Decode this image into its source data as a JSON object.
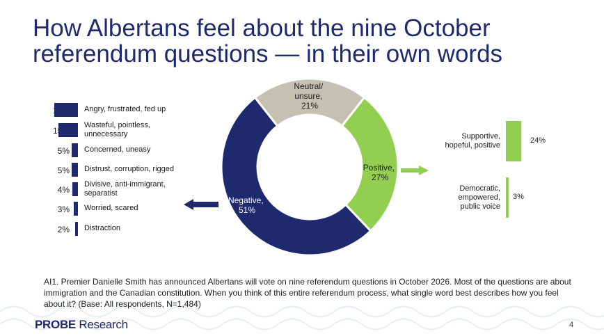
{
  "title_line1": "How Albertans feel about the nine October",
  "title_line2": "referendum questions — in their own words",
  "colors": {
    "navy": "#1f2a6e",
    "green": "#92cf50",
    "gray": "#c4c0b2"
  },
  "chart_data": [
    {
      "type": "pie",
      "subtype": "donut",
      "categories": [
        "Negative",
        "Positive",
        "Neutral/ unsure"
      ],
      "values": [
        51,
        27,
        21
      ],
      "label_text": [
        "Negative,",
        "Positive,",
        "Neutral/",
        "unsure,"
      ],
      "pct_text": [
        "51%",
        "27%",
        "21%"
      ]
    },
    {
      "type": "bar",
      "orientation": "horizontal",
      "group": "Negative",
      "categories": [
        "Angry, frustrated, fed up",
        "Wasteful, pointless, unnecessary",
        "Concerned, uneasy",
        "Distrust, corruption, rigged",
        "Divisive, anti-immigrant, separatist",
        "Worried, scared",
        "Distraction"
      ],
      "label_lines": [
        [
          "Angry, frustrated, fed up"
        ],
        [
          "Wasteful, pointless,",
          "unnecessary"
        ],
        [
          "Concerned, uneasy"
        ],
        [
          "Distrust, corruption, rigged"
        ],
        [
          "Divisive, anti-immigrant,",
          "separatist"
        ],
        [
          "Worried, scared"
        ],
        [
          "Distraction"
        ]
      ],
      "values": [
        18,
        15,
        5,
        5,
        4,
        3,
        2
      ],
      "value_labels": [
        "18%",
        "15%",
        "5%",
        "5%",
        "4%",
        "3%",
        "2%"
      ]
    },
    {
      "type": "bar",
      "orientation": "vertical",
      "group": "Positive",
      "categories": [
        "Supportive, hopeful, positive",
        "Democratic, empowered, public voice"
      ],
      "label_lines": [
        [
          "Supportive,",
          "hopeful, positive"
        ],
        [
          "Democratic,",
          "empowered,",
          "public voice"
        ]
      ],
      "values": [
        24,
        3
      ],
      "value_labels": [
        "24%",
        "3%"
      ]
    }
  ],
  "footnote": "AI1. Premier Danielle Smith has announced Albertans will vote on nine referendum questions in October 2026. Most of the questions are about immigration and the Canadian constitution. When you think of this entire referendum process, what single word best describes how you feel about it? (Base: All respondents, N=1,484)",
  "logo": {
    "brand": "PROBE",
    "suffix": " Research"
  },
  "page_number": "4"
}
